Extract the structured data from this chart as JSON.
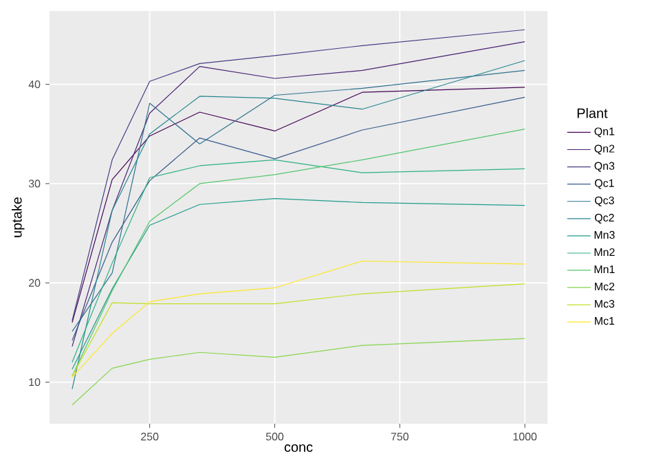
{
  "chart_data": {
    "type": "line",
    "xlabel": "conc",
    "ylabel": "uptake",
    "legend_title": "Plant",
    "x": [
      95,
      175,
      250,
      350,
      500,
      675,
      1000
    ],
    "series": [
      {
        "name": "Qn1",
        "color": "#440154",
        "values": [
          16.0,
          30.4,
          34.8,
          37.2,
          35.3,
          39.2,
          39.7
        ]
      },
      {
        "name": "Qn2",
        "color": "#482173",
        "values": [
          13.6,
          27.3,
          37.1,
          41.8,
          40.6,
          41.4,
          44.3
        ]
      },
      {
        "name": "Qn3",
        "color": "#433E85",
        "values": [
          16.2,
          32.4,
          40.3,
          42.1,
          42.9,
          43.9,
          45.5
        ]
      },
      {
        "name": "Qc1",
        "color": "#38598C",
        "values": [
          14.2,
          24.1,
          30.3,
          34.6,
          32.5,
          35.4,
          38.7
        ]
      },
      {
        "name": "Qc3",
        "color": "#2D708E",
        "values": [
          15.1,
          21.0,
          38.1,
          34.0,
          38.9,
          39.6,
          41.4
        ]
      },
      {
        "name": "Qc2",
        "color": "#25858E",
        "values": [
          9.3,
          27.3,
          35.0,
          38.8,
          38.6,
          37.5,
          42.4
        ]
      },
      {
        "name": "Mn3",
        "color": "#1E9B8A",
        "values": [
          11.3,
          19.4,
          25.8,
          27.9,
          28.5,
          28.1,
          27.8
        ]
      },
      {
        "name": "Mn2",
        "color": "#2BB07F",
        "values": [
          12.0,
          22.0,
          30.6,
          31.8,
          32.4,
          31.1,
          31.5
        ]
      },
      {
        "name": "Mn1",
        "color": "#51C56A",
        "values": [
          10.6,
          19.2,
          26.2,
          30.0,
          30.9,
          32.4,
          35.5
        ]
      },
      {
        "name": "Mc2",
        "color": "#85D54A",
        "values": [
          7.7,
          11.4,
          12.3,
          13.0,
          12.5,
          13.7,
          14.4
        ]
      },
      {
        "name": "Mc3",
        "color": "#C2DF23",
        "values": [
          10.6,
          18.0,
          17.9,
          17.9,
          17.9,
          18.9,
          19.9
        ]
      },
      {
        "name": "Mc1",
        "color": "#FDE725",
        "values": [
          10.5,
          14.9,
          18.1,
          18.9,
          19.5,
          22.2,
          21.9
        ]
      }
    ],
    "xlim": [
      49.75,
      1045.25
    ],
    "ylim": [
      5.81,
      47.39
    ],
    "xticks": [
      250,
      500,
      750,
      1000
    ],
    "yticks": [
      10,
      20,
      30,
      40
    ],
    "grid": true,
    "legend": "right",
    "marker": "none",
    "line_style": "solid"
  }
}
